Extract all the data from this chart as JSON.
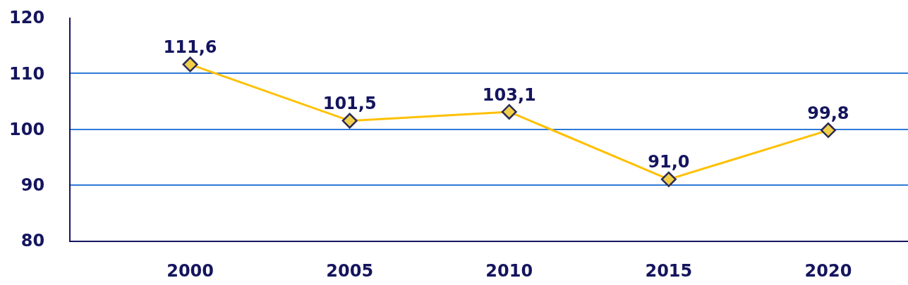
{
  "chart_data": {
    "type": "line",
    "categories": [
      "2000",
      "2005",
      "2010",
      "2015",
      "2020"
    ],
    "series": [
      {
        "color": "#ffc000",
        "values": [
          111.6,
          101.5,
          103.1,
          91.0,
          99.8
        ],
        "value_labels": [
          "111,6",
          "101,5",
          "103,1",
          "91,0",
          "99,8"
        ]
      }
    ],
    "ylim": [
      80,
      120
    ],
    "yticks": [
      80,
      90,
      100,
      110,
      120
    ],
    "grid": "y",
    "marker": "diamond",
    "line_style": "solid"
  }
}
